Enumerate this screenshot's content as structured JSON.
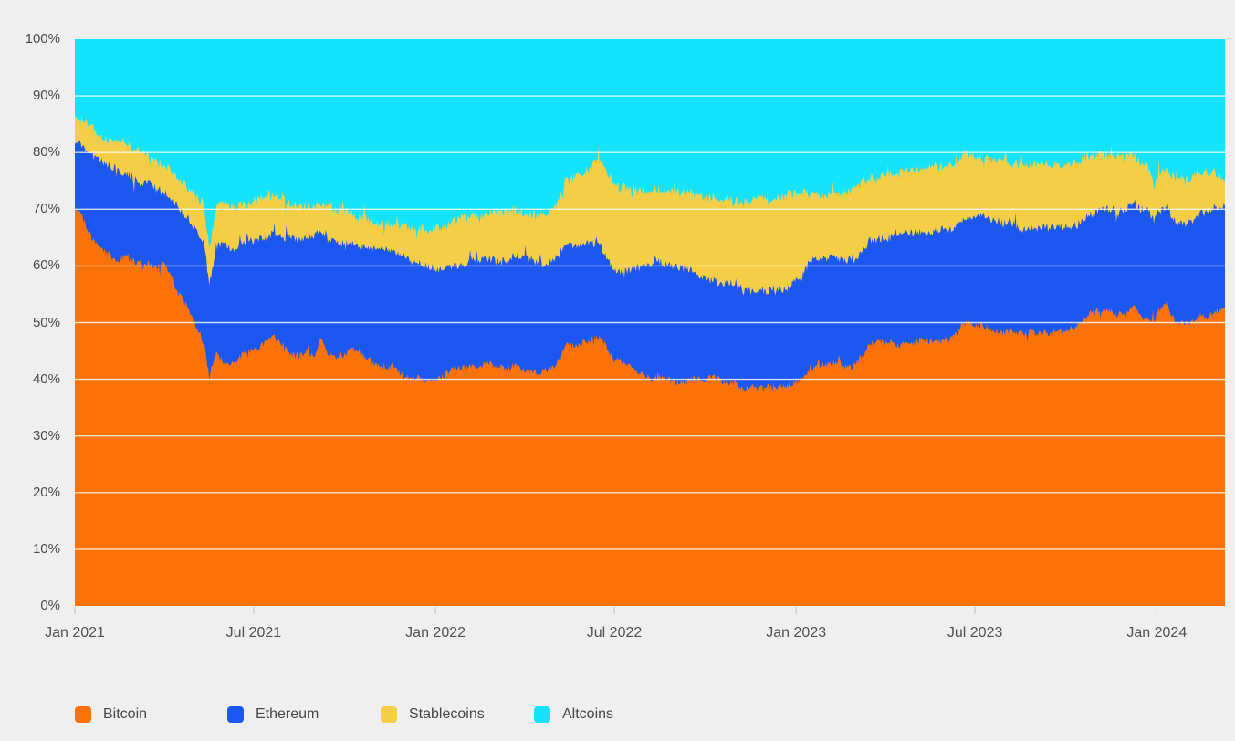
{
  "page": {
    "background": "#f0efef"
  },
  "legend": {
    "items": [
      {
        "label": "Bitcoin",
        "color": "#fb7308"
      },
      {
        "label": "Ethereum",
        "color": "#1b57f0"
      },
      {
        "label": "Stablecoins",
        "color": "#f5ce48"
      },
      {
        "label": "Altcoins",
        "color": "#15e2fb"
      }
    ]
  },
  "chart_data": {
    "type": "area",
    "stacked": true,
    "unit": "percent_of_total_crypto_market_cap",
    "grid": "horizontal-white-lines",
    "legend_position": "bottom-left",
    "ylim": [
      0,
      100
    ],
    "x_range": [
      "2021-01-01",
      "2024-03-10"
    ],
    "y_ticks": [
      {
        "label": "0%",
        "value": 0
      },
      {
        "label": "10%",
        "value": 10
      },
      {
        "label": "20%",
        "value": 20
      },
      {
        "label": "30%",
        "value": 30
      },
      {
        "label": "40%",
        "value": 40
      },
      {
        "label": "50%",
        "value": 50
      },
      {
        "label": "60%",
        "value": 60
      },
      {
        "label": "70%",
        "value": 70
      },
      {
        "label": "80%",
        "value": 80
      },
      {
        "label": "90%",
        "value": 90
      },
      {
        "label": "100%",
        "value": 100
      }
    ],
    "x_ticks": [
      {
        "label": "Jan 2021",
        "date": "2021-01-01"
      },
      {
        "label": "Jul 2021",
        "date": "2021-07-01"
      },
      {
        "label": "Jan 2022",
        "date": "2022-01-01"
      },
      {
        "label": "Jul 2022",
        "date": "2022-07-01"
      },
      {
        "label": "Jan 2023",
        "date": "2023-01-01"
      },
      {
        "label": "Jul 2023",
        "date": "2023-07-01"
      },
      {
        "label": "Jan 2024",
        "date": "2024-01-01"
      }
    ],
    "dates": [
      "2021-01-01",
      "2021-01-08",
      "2021-01-15",
      "2021-01-22",
      "2021-02-01",
      "2021-02-08",
      "2021-02-15",
      "2021-02-22",
      "2021-03-01",
      "2021-03-08",
      "2021-03-15",
      "2021-03-22",
      "2021-04-01",
      "2021-04-08",
      "2021-04-15",
      "2021-04-22",
      "2021-05-01",
      "2021-05-08",
      "2021-05-12",
      "2021-05-17",
      "2021-05-24",
      "2021-06-01",
      "2021-06-08",
      "2021-06-15",
      "2021-06-22",
      "2021-07-01",
      "2021-07-08",
      "2021-07-15",
      "2021-07-22",
      "2021-08-01",
      "2021-08-08",
      "2021-08-15",
      "2021-08-22",
      "2021-09-01",
      "2021-09-07",
      "2021-09-15",
      "2021-09-22",
      "2021-10-01",
      "2021-10-08",
      "2021-10-15",
      "2021-10-22",
      "2021-11-01",
      "2021-11-08",
      "2021-11-15",
      "2021-11-22",
      "2021-12-01",
      "2021-12-08",
      "2021-12-15",
      "2021-12-22",
      "2022-01-01",
      "2022-01-08",
      "2022-01-15",
      "2022-01-22",
      "2022-02-01",
      "2022-02-08",
      "2022-02-15",
      "2022-02-22",
      "2022-03-01",
      "2022-03-08",
      "2022-03-15",
      "2022-03-22",
      "2022-04-01",
      "2022-04-08",
      "2022-04-15",
      "2022-04-22",
      "2022-05-01",
      "2022-05-08",
      "2022-05-12",
      "2022-05-22",
      "2022-06-01",
      "2022-06-13",
      "2022-06-19",
      "2022-07-01",
      "2022-07-08",
      "2022-07-15",
      "2022-07-22",
      "2022-08-01",
      "2022-08-08",
      "2022-08-15",
      "2022-08-22",
      "2022-09-01",
      "2022-09-08",
      "2022-09-15",
      "2022-09-22",
      "2022-10-01",
      "2022-10-08",
      "2022-10-15",
      "2022-10-22",
      "2022-11-01",
      "2022-11-09",
      "2022-11-15",
      "2022-11-22",
      "2022-12-01",
      "2022-12-08",
      "2022-12-15",
      "2022-12-22",
      "2023-01-01",
      "2023-01-08",
      "2023-01-15",
      "2023-01-22",
      "2023-02-01",
      "2023-02-08",
      "2023-02-15",
      "2023-02-22",
      "2023-03-01",
      "2023-03-11",
      "2023-03-15",
      "2023-03-22",
      "2023-04-01",
      "2023-04-08",
      "2023-04-15",
      "2023-04-22",
      "2023-05-01",
      "2023-05-08",
      "2023-05-15",
      "2023-05-22",
      "2023-06-01",
      "2023-06-10",
      "2023-06-20",
      "2023-07-01",
      "2023-07-08",
      "2023-07-15",
      "2023-07-22",
      "2023-08-01",
      "2023-08-08",
      "2023-08-18",
      "2023-08-25",
      "2023-09-01",
      "2023-09-08",
      "2023-09-15",
      "2023-09-22",
      "2023-10-01",
      "2023-10-08",
      "2023-10-15",
      "2023-10-24",
      "2023-11-01",
      "2023-11-08",
      "2023-11-15",
      "2023-11-22",
      "2023-12-01",
      "2023-12-08",
      "2023-12-15",
      "2023-12-22",
      "2023-12-29",
      "2024-01-03",
      "2024-01-11",
      "2024-01-15",
      "2024-01-22",
      "2024-02-01",
      "2024-02-08",
      "2024-02-15",
      "2024-02-22",
      "2024-03-01",
      "2024-03-10"
    ],
    "series": [
      {
        "name": "Bitcoin",
        "color": "#fb7308",
        "values": [
          70.5,
          69.0,
          66.0,
          64.0,
          62.5,
          61.5,
          61.0,
          62.0,
          61.0,
          60.5,
          60.5,
          59.5,
          60.5,
          58.5,
          55.5,
          53.5,
          50.5,
          48.0,
          46.0,
          40.5,
          44.5,
          43.0,
          42.5,
          43.5,
          44.5,
          45.5,
          46.0,
          46.5,
          47.5,
          45.5,
          44.5,
          44.0,
          44.5,
          44.5,
          47.0,
          44.5,
          44.0,
          44.5,
          45.5,
          45.0,
          44.0,
          42.5,
          42.0,
          42.5,
          41.5,
          40.5,
          40.0,
          40.5,
          39.5,
          40.0,
          40.5,
          41.5,
          42.0,
          42.0,
          42.5,
          42.0,
          43.0,
          42.5,
          42.0,
          42.0,
          42.5,
          41.5,
          41.5,
          41.0,
          41.5,
          42.0,
          44.0,
          46.0,
          46.0,
          46.5,
          47.5,
          47.0,
          43.5,
          43.0,
          42.5,
          41.5,
          40.5,
          40.0,
          40.5,
          40.0,
          39.5,
          39.5,
          40.0,
          40.0,
          40.0,
          40.5,
          40.0,
          39.5,
          39.5,
          38.0,
          38.5,
          38.5,
          38.5,
          38.5,
          39.0,
          38.5,
          39.5,
          40.0,
          42.0,
          42.5,
          42.5,
          43.0,
          42.5,
          42.0,
          42.5,
          44.5,
          46.0,
          46.5,
          46.5,
          46.0,
          46.0,
          46.5,
          46.5,
          47.0,
          46.5,
          46.5,
          47.0,
          47.5,
          50.0,
          49.5,
          49.5,
          49.0,
          48.5,
          48.5,
          48.5,
          48.0,
          48.5,
          48.0,
          48.5,
          48.0,
          48.5,
          48.5,
          49.0,
          49.5,
          51.5,
          52.0,
          52.5,
          52.0,
          51.5,
          51.5,
          53.0,
          51.0,
          50.5,
          50.5,
          52.0,
          53.5,
          51.5,
          50.0,
          50.0,
          50.5,
          51.5,
          51.0,
          52.0,
          52.5
        ]
      },
      {
        "name": "Ethereum",
        "color": "#1b57f0",
        "values": [
          11.0,
          12.5,
          14.0,
          15.0,
          15.5,
          16.0,
          15.5,
          14.5,
          14.5,
          14.0,
          14.5,
          14.5,
          12.5,
          13.5,
          15.0,
          15.5,
          16.5,
          17.5,
          18.0,
          16.0,
          19.0,
          21.0,
          20.5,
          20.0,
          19.5,
          19.0,
          19.0,
          18.5,
          18.5,
          19.5,
          20.5,
          20.5,
          20.5,
          21.0,
          19.5,
          20.0,
          20.0,
          19.5,
          18.5,
          18.5,
          19.5,
          20.5,
          21.0,
          20.5,
          21.0,
          21.0,
          20.5,
          20.0,
          20.5,
          19.5,
          19.0,
          18.5,
          18.0,
          18.5,
          19.0,
          19.0,
          18.5,
          18.5,
          18.5,
          19.0,
          19.5,
          20.0,
          19.5,
          19.5,
          19.0,
          19.0,
          18.5,
          17.5,
          17.5,
          17.5,
          17.0,
          16.0,
          15.5,
          16.0,
          16.5,
          18.0,
          19.5,
          20.5,
          20.5,
          20.0,
          20.5,
          20.0,
          19.5,
          18.5,
          17.5,
          17.0,
          17.0,
          17.5,
          17.5,
          17.5,
          17.0,
          17.0,
          17.0,
          17.5,
          17.0,
          17.5,
          18.0,
          18.5,
          19.0,
          19.0,
          19.0,
          18.5,
          18.5,
          19.0,
          18.5,
          18.5,
          18.5,
          18.0,
          18.5,
          19.0,
          19.5,
          19.0,
          19.5,
          19.0,
          19.5,
          19.5,
          19.5,
          19.0,
          18.5,
          19.5,
          19.5,
          19.5,
          19.5,
          19.0,
          19.0,
          18.5,
          18.5,
          18.5,
          18.5,
          18.5,
          18.5,
          18.5,
          18.0,
          18.0,
          17.5,
          17.5,
          17.5,
          18.0,
          18.5,
          18.5,
          18.5,
          19.0,
          19.5,
          17.5,
          17.5,
          17.0,
          17.5,
          17.5,
          17.5,
          17.5,
          18.0,
          18.5,
          18.5,
          18.0
        ]
      },
      {
        "name": "Stablecoins",
        "color": "#f5ce48",
        "values": [
          5.0,
          4.5,
          5.0,
          5.0,
          4.5,
          5.0,
          5.0,
          5.0,
          5.5,
          5.5,
          5.0,
          5.0,
          5.0,
          5.0,
          5.0,
          5.5,
          6.0,
          6.0,
          6.5,
          6.5,
          6.5,
          7.5,
          7.5,
          7.0,
          7.0,
          7.0,
          7.0,
          7.5,
          7.0,
          6.5,
          6.0,
          6.0,
          5.5,
          5.0,
          4.5,
          6.0,
          6.0,
          6.0,
          5.5,
          5.0,
          5.0,
          4.5,
          4.5,
          4.5,
          5.0,
          5.5,
          6.0,
          6.0,
          6.5,
          7.0,
          7.0,
          7.5,
          8.0,
          8.0,
          7.5,
          7.5,
          8.0,
          8.5,
          9.0,
          8.5,
          8.0,
          8.0,
          8.0,
          8.5,
          9.0,
          9.0,
          10.0,
          11.5,
          12.0,
          12.5,
          14.0,
          15.5,
          15.5,
          15.0,
          14.5,
          14.0,
          13.5,
          13.0,
          12.5,
          13.0,
          13.0,
          13.5,
          13.5,
          14.0,
          14.5,
          14.5,
          15.0,
          15.0,
          14.5,
          16.0,
          16.0,
          16.5,
          16.5,
          16.0,
          16.0,
          16.5,
          15.5,
          14.5,
          11.5,
          11.0,
          11.0,
          11.0,
          11.5,
          12.0,
          12.5,
          12.0,
          11.0,
          11.0,
          11.0,
          11.0,
          11.0,
          11.5,
          11.0,
          11.5,
          11.5,
          11.5,
          11.0,
          11.5,
          11.5,
          10.5,
          10.0,
          10.5,
          10.5,
          11.0,
          10.5,
          11.5,
          11.0,
          11.5,
          11.0,
          11.5,
          11.0,
          11.0,
          11.0,
          11.0,
          10.5,
          10.0,
          9.5,
          9.5,
          9.0,
          9.0,
          8.0,
          8.5,
          8.0,
          6.5,
          7.0,
          6.5,
          7.0,
          8.0,
          8.0,
          8.0,
          7.0,
          7.0,
          6.0,
          4.5
        ]
      },
      {
        "name": "Altcoins",
        "color": "#15e2fb",
        "values": "remainder_to_100"
      }
    ]
  }
}
